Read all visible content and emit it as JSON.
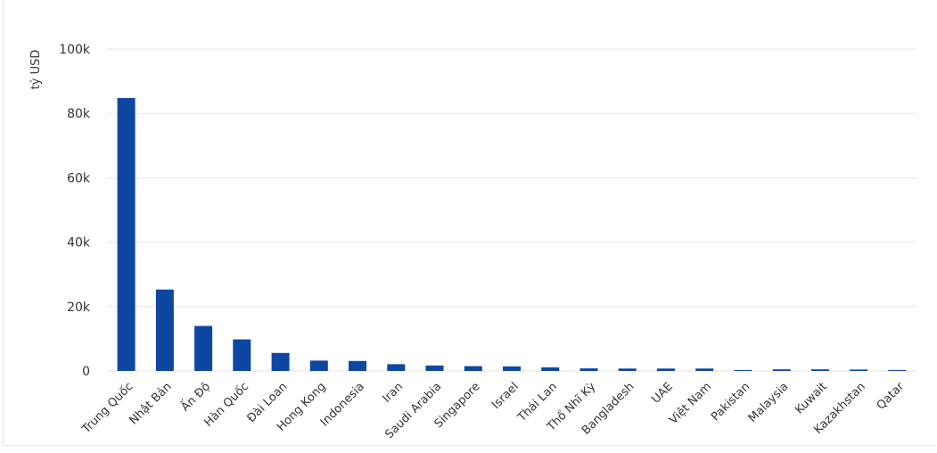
{
  "chart_data": {
    "type": "bar",
    "title": "",
    "xlabel": "",
    "ylabel": "tỷ USD",
    "ylim": [
      0,
      100000
    ],
    "yticks": [
      0,
      20000,
      40000,
      60000,
      80000,
      100000
    ],
    "ytick_labels": [
      "0",
      "20k",
      "40k",
      "60k",
      "80k",
      "100k"
    ],
    "grid": true,
    "legend": "none",
    "bar_color": "#0d47a1",
    "grid_color": "#e6e6e6",
    "categories": [
      "Trung Quốc",
      "Nhật Bản",
      "Ấn Độ",
      "Hàn Quốc",
      "Đài Loan",
      "Hong Kong",
      "Indonesia",
      "Iran",
      "Saudi Arabia",
      "Singapore",
      "Israel",
      "Thái Lan",
      "Thổ Nhĩ Kỳ",
      "Bangladesh",
      "UAE",
      "Việt Nam",
      "Pakistan",
      "Malaysia",
      "Kuwait",
      "Kazakhstan",
      "Qatar"
    ],
    "values": [
      84800,
      25300,
      14000,
      9800,
      5600,
      3200,
      3100,
      2100,
      1700,
      1500,
      1400,
      1100,
      800,
      750,
      750,
      750,
      200,
      500,
      500,
      450,
      250
    ]
  }
}
